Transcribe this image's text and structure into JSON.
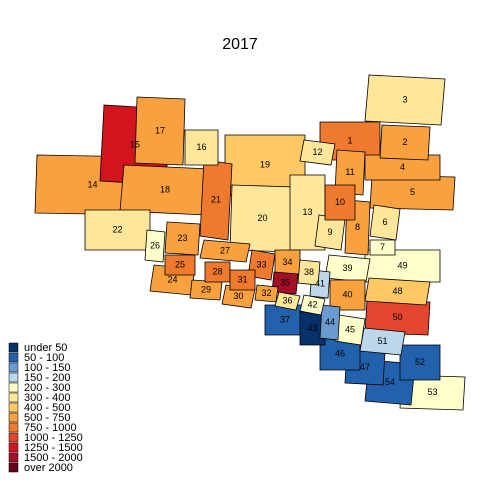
{
  "map": {
    "title": "2017",
    "legend": [
      {
        "label": "under 50",
        "color": "#08306b"
      },
      {
        "label": "50 - 100",
        "color": "#2262ad"
      },
      {
        "label": "100 - 150",
        "color": "#6a9bcf"
      },
      {
        "label": "150 - 200",
        "color": "#bcd6ec"
      },
      {
        "label": "200 - 300",
        "color": "#ffffcc"
      },
      {
        "label": "300 - 400",
        "color": "#fee69b"
      },
      {
        "label": "400 - 500",
        "color": "#fec965"
      },
      {
        "label": "500 - 750",
        "color": "#f9a03f"
      },
      {
        "label": "750 - 1000",
        "color": "#ef7a2e"
      },
      {
        "label": "1000 - 1250",
        "color": "#e3452f"
      },
      {
        "label": "1250 - 1500",
        "color": "#d2141c"
      },
      {
        "label": "1500 - 2000",
        "color": "#a50f27"
      },
      {
        "label": "over 2000",
        "color": "#67001f"
      }
    ],
    "regions": [
      {
        "label": "1",
        "color": "#ef7a2e"
      },
      {
        "label": "2",
        "color": "#f9a03f"
      },
      {
        "label": "3",
        "color": "#fee69b"
      },
      {
        "label": "4",
        "color": "#f9a03f"
      },
      {
        "label": "5",
        "color": "#f9a03f"
      },
      {
        "label": "6",
        "color": "#fee69b"
      },
      {
        "label": "7",
        "color": "#ffffcc"
      },
      {
        "label": "8",
        "color": "#f9a03f"
      },
      {
        "label": "9",
        "color": "#fee69b"
      },
      {
        "label": "10",
        "color": "#ef7a2e"
      },
      {
        "label": "11",
        "color": "#f9a03f"
      },
      {
        "label": "12",
        "color": "#fee69b"
      },
      {
        "label": "13",
        "color": "#fee69b"
      },
      {
        "label": "14",
        "color": "#f9a03f"
      },
      {
        "label": "15",
        "color": "#d2141c"
      },
      {
        "label": "16",
        "color": "#fee69b"
      },
      {
        "label": "17",
        "color": "#f9a03f"
      },
      {
        "label": "18",
        "color": "#f9a03f"
      },
      {
        "label": "19",
        "color": "#fec965"
      },
      {
        "label": "20",
        "color": "#fee69b"
      },
      {
        "label": "21",
        "color": "#ef7a2e"
      },
      {
        "label": "22",
        "color": "#fee69b"
      },
      {
        "label": "23",
        "color": "#f9a03f"
      },
      {
        "label": "24",
        "color": "#f9a03f"
      },
      {
        "label": "25",
        "color": "#ef7a2e"
      },
      {
        "label": "26",
        "color": "#ffffcc"
      },
      {
        "label": "27",
        "color": "#f9a03f"
      },
      {
        "label": "28",
        "color": "#ef7a2e"
      },
      {
        "label": "29",
        "color": "#f9a03f"
      },
      {
        "label": "30",
        "color": "#f9a03f"
      },
      {
        "label": "31",
        "color": "#ef7a2e"
      },
      {
        "label": "32",
        "color": "#f9a03f"
      },
      {
        "label": "33",
        "color": "#ef7a2e"
      },
      {
        "label": "34",
        "color": "#f9a03f"
      },
      {
        "label": "35",
        "color": "#a50f27"
      },
      {
        "label": "36",
        "color": "#fee69b"
      },
      {
        "label": "37",
        "color": "#2262ad"
      },
      {
        "label": "38",
        "color": "#fee69b"
      },
      {
        "label": "39",
        "color": "#ffffcc"
      },
      {
        "label": "40",
        "color": "#f9a03f"
      },
      {
        "label": "41",
        "color": "#bcd6ec"
      },
      {
        "label": "42",
        "color": "#ffffcc"
      },
      {
        "label": "43",
        "color": "#08306b"
      },
      {
        "label": "44",
        "color": "#6a9bcf"
      },
      {
        "label": "45",
        "color": "#ffffcc"
      },
      {
        "label": "46",
        "color": "#2262ad"
      },
      {
        "label": "47",
        "color": "#2262ad"
      },
      {
        "label": "48",
        "color": "#fec965"
      },
      {
        "label": "49",
        "color": "#ffffcc"
      },
      {
        "label": "50",
        "color": "#e3452f"
      },
      {
        "label": "51",
        "color": "#bcd6ec"
      },
      {
        "label": "52",
        "color": "#2262ad"
      },
      {
        "label": "53",
        "color": "#ffffcc"
      },
      {
        "label": "54",
        "color": "#2262ad"
      }
    ]
  }
}
